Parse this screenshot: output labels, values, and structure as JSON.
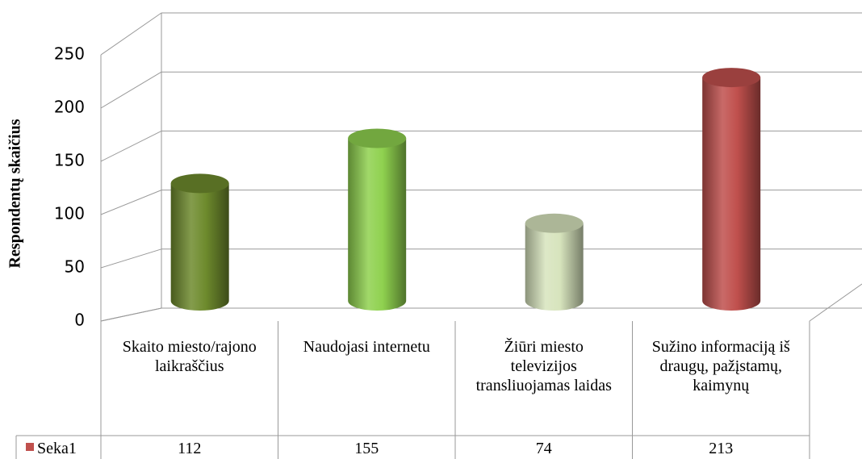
{
  "chart_data": {
    "type": "bar3d",
    "y_label": "Respondentų skaičius",
    "categories": [
      "Skaito miesto/rajono laikraščius",
      "Naudojasi internetu",
      "Žiūri miesto televizijos transliuojamas laidas",
      "Sužino informaciją iš draugų, pažįstamų, kaimynų"
    ],
    "series": [
      {
        "name": "Seka1",
        "color": "#c0504d",
        "values": [
          112,
          155,
          74,
          213
        ]
      }
    ],
    "colors": [
      "#6e8b2d",
      "#8fd14f",
      "#d7e4bd",
      "#c0504d"
    ],
    "ylim": [
      0,
      250
    ],
    "yticks": [
      0,
      50,
      100,
      150,
      200,
      250
    ],
    "grid": true,
    "data_table": true
  }
}
